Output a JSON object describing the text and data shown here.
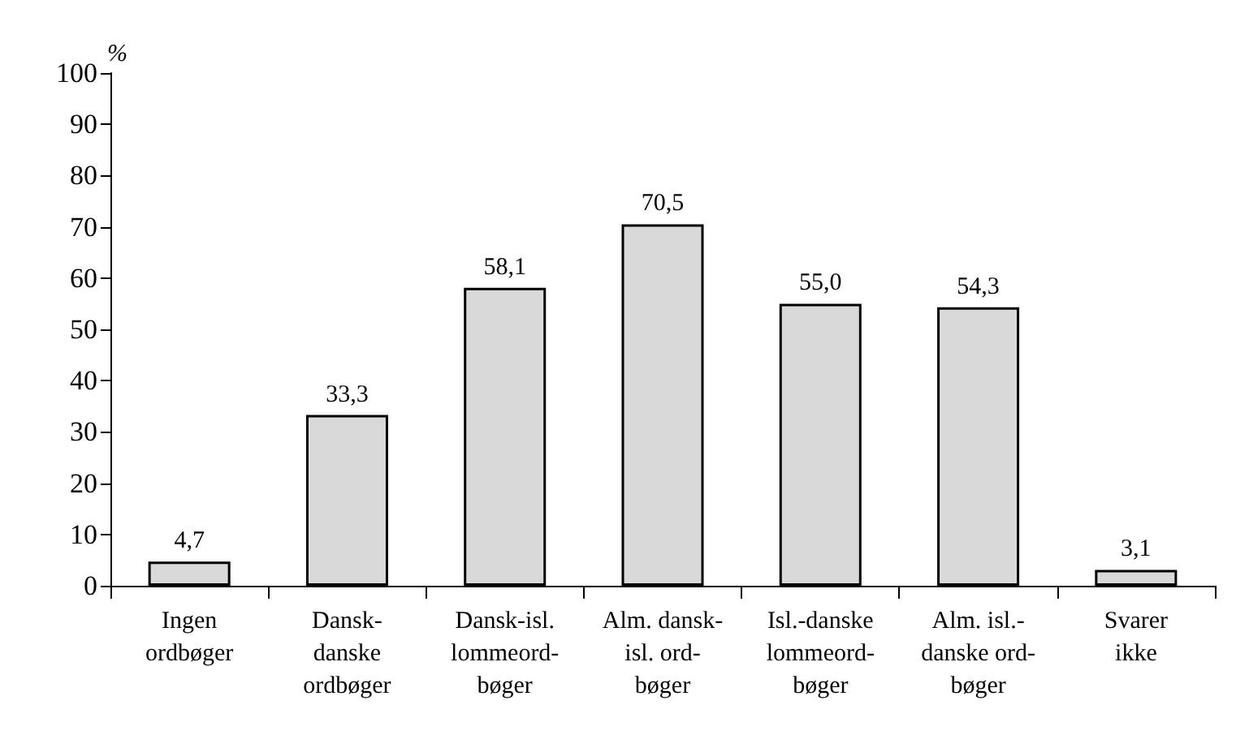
{
  "chart_data": {
    "type": "bar",
    "ylabel": "%",
    "categories": [
      "Ingen\nordbøger",
      "Dansk-\ndanske\nordbøger",
      "Dansk-isl.\nlommeord-\nbøger",
      "Alm. dansk-\nisl. ord-\nbøger",
      "Isl.-danske\nlommeord-\nbøger",
      "Alm. isl.-\ndanske ord-\nbøger",
      "Svarer\nikke"
    ],
    "values": [
      4.7,
      33.3,
      58.1,
      70.5,
      55.0,
      54.3,
      3.1
    ],
    "value_labels": [
      "4,7",
      "33,3",
      "58,1",
      "70,5",
      "55,0",
      "54,3",
      "3,1"
    ],
    "color": "#d9d9d9",
    "ylim": [
      0,
      100
    ],
    "yticks": [
      0,
      10,
      20,
      30,
      40,
      50,
      60,
      70,
      80,
      90,
      100
    ],
    "grid": false
  }
}
